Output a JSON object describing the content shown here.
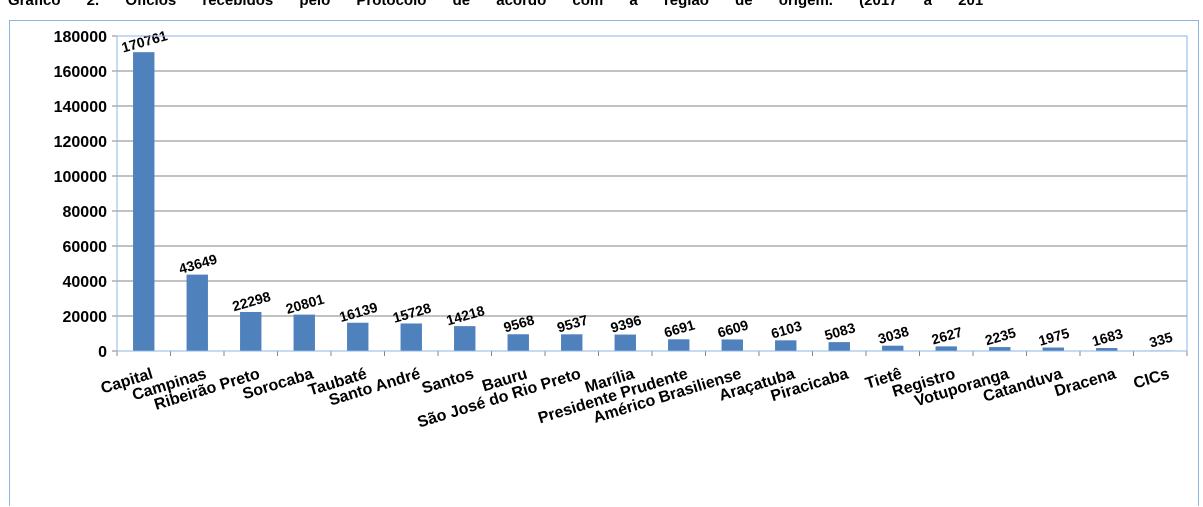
{
  "page": {
    "title_fragment": "Gráfico 2. Ofícios recebidos pelo Protocolo de acordo com a região de origem. (2017 a 201"
  },
  "chart_data": {
    "type": "bar",
    "categories": [
      "Capital",
      "Campinas",
      "Ribeirão Preto",
      "Sorocaba",
      "Taubaté",
      "Santo André",
      "Santos",
      "Bauru",
      "São José do Rio Preto",
      "Marília",
      "Presidente Prudente",
      "Américo Brasiliense",
      "Araçatuba",
      "Piracicaba",
      "Tietê",
      "Registro",
      "Votuporanga",
      "Catanduva",
      "Dracena",
      "CICs"
    ],
    "values": [
      170761,
      43649,
      22298,
      20801,
      16139,
      15728,
      14218,
      9568,
      9537,
      9396,
      6691,
      6609,
      6103,
      5083,
      3038,
      2627,
      2235,
      1975,
      1683,
      335
    ],
    "ylim": [
      0,
      180000
    ],
    "yticks": [
      0,
      20000,
      40000,
      60000,
      80000,
      100000,
      120000,
      140000,
      160000,
      180000
    ],
    "grid": true,
    "bar_color": "#4f81bd",
    "grid_color": "#868686",
    "plot_border_color": "#8eb4e3"
  }
}
